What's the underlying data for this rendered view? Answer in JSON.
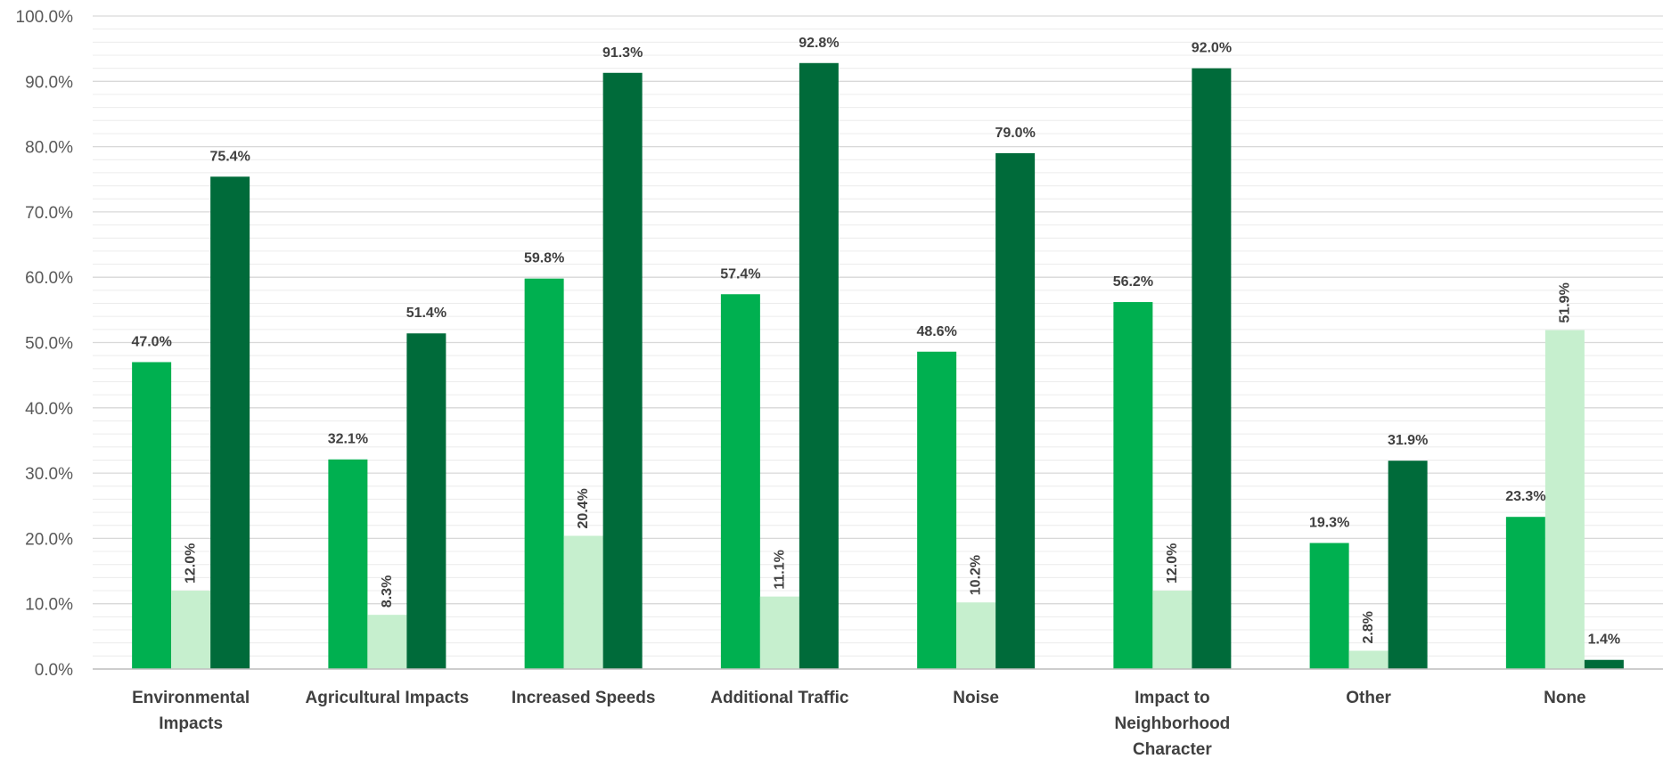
{
  "chart_data": {
    "type": "bar",
    "categories": [
      [
        "Environmental",
        "Impacts"
      ],
      [
        "Agricultural Impacts"
      ],
      [
        "Increased Speeds"
      ],
      [
        "Additional Traffic"
      ],
      [
        "Noise"
      ],
      [
        "Impact to",
        "Neighborhood",
        "Character"
      ],
      [
        "Other"
      ],
      [
        "None"
      ]
    ],
    "series": [
      {
        "color": "#00b050",
        "values": [
          47.0,
          32.1,
          59.8,
          57.4,
          48.6,
          56.2,
          19.3,
          23.3
        ],
        "labels": [
          "47.0%",
          "32.1%",
          "59.8%",
          "57.4%",
          "48.6%",
          "56.2%",
          "19.3%",
          "23.3%"
        ],
        "label_orientation": "horizontal"
      },
      {
        "color": "#c6efce",
        "values": [
          12.0,
          8.3,
          20.4,
          11.1,
          10.2,
          12.0,
          2.8,
          51.9
        ],
        "labels": [
          "12.0%",
          "8.3%",
          "20.4%",
          "11.1%",
          "10.2%",
          "12.0%",
          "2.8%",
          "51.9%"
        ],
        "label_orientation": "vertical"
      },
      {
        "color": "#006b3a",
        "values": [
          75.4,
          51.4,
          91.3,
          92.8,
          79.0,
          92.0,
          31.9,
          1.4
        ],
        "labels": [
          "75.4%",
          "51.4%",
          "91.3%",
          "92.8%",
          "79.0%",
          "92.0%",
          "31.9%",
          "1.4%"
        ],
        "label_orientation": "horizontal"
      }
    ],
    "yticks": [
      "0.0%",
      "10.0%",
      "20.0%",
      "30.0%",
      "40.0%",
      "50.0%",
      "60.0%",
      "70.0%",
      "80.0%",
      "90.0%",
      "100.0%"
    ],
    "ylim": [
      0,
      100
    ],
    "major_tick_step": 10,
    "minor_gridlines_per_major": 5,
    "grid": true,
    "legend": "none",
    "title": "",
    "xlabel": "",
    "ylabel": ""
  }
}
